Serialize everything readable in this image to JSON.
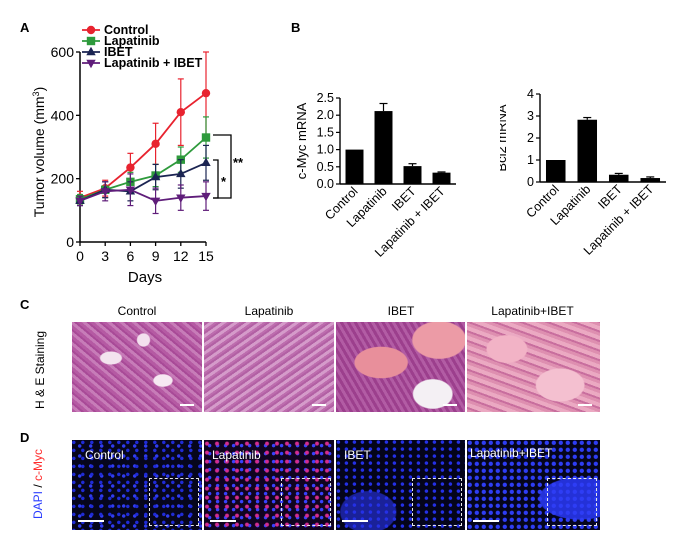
{
  "panels": {
    "A": "A",
    "B": "B",
    "C": "C",
    "D": "D"
  },
  "chart_data": [
    {
      "type": "line",
      "xlabel": "Days",
      "ylabel": "Tumor volume (mm",
      "ylabel_sup": "3",
      "ylabel_end": ")",
      "x": [
        0,
        3,
        6,
        9,
        12,
        15
      ],
      "xlim": [
        0,
        15
      ],
      "ylim": [
        0,
        600
      ],
      "yticks": [
        0,
        200,
        400,
        600
      ],
      "legend": "top-left",
      "series": [
        {
          "name": "Control",
          "color": "#e8232f",
          "marker": "circle",
          "values": [
            140,
            170,
            235,
            310,
            410,
            470
          ],
          "err": [
            20,
            25,
            45,
            65,
            105,
            130
          ]
        },
        {
          "name": "Lapatinib",
          "color": "#2e9a3c",
          "marker": "square",
          "values": [
            135,
            165,
            190,
            210,
            260,
            330
          ],
          "err": [
            15,
            25,
            30,
            35,
            40,
            65
          ]
        },
        {
          "name": "IBET",
          "color": "#1b2452",
          "marker": "triangle",
          "values": [
            130,
            165,
            160,
            205,
            215,
            250
          ],
          "err": [
            15,
            25,
            30,
            40,
            45,
            55
          ]
        },
        {
          "name": "Lapatinib + IBET",
          "color": "#5f1d7a",
          "marker": "triangle-down",
          "values": [
            130,
            160,
            165,
            130,
            140,
            145
          ],
          "err": [
            15,
            30,
            50,
            40,
            40,
            45
          ]
        }
      ],
      "significance": [
        "**",
        "*"
      ]
    },
    {
      "type": "bar",
      "ylabel": "c-Myc mRNA",
      "categories": [
        "Control",
        "Lapatinib",
        "IBET",
        "Lapatinib + IBET"
      ],
      "values": [
        1.0,
        2.12,
        0.52,
        0.33
      ],
      "err": [
        0.0,
        0.22,
        0.07,
        0.02
      ],
      "ylim": [
        0,
        2.5
      ],
      "yticks": [
        "0.0",
        "0.5",
        "1.0",
        "1.5",
        "2.0",
        "2.5"
      ],
      "bar_color": "#000000"
    },
    {
      "type": "bar",
      "ylabel": "Bcl2 mRNA",
      "categories": [
        "Control",
        "Lapatinib",
        "IBET",
        "Lapatinib + IBET"
      ],
      "values": [
        1.0,
        2.83,
        0.33,
        0.18
      ],
      "err": [
        0.0,
        0.1,
        0.06,
        0.05
      ],
      "ylim": [
        0,
        4
      ],
      "yticks": [
        "0",
        "1",
        "2",
        "3",
        "4"
      ],
      "bar_color": "#000000"
    }
  ],
  "panel_c": {
    "side_label": "H & E Staining",
    "titles": [
      "Control",
      "Lapatinib",
      "IBET",
      "Lapatinib+IBET"
    ]
  },
  "panel_d": {
    "side_label_dapi": "DAPI",
    "side_label_sep": "/",
    "side_label_myc": "c-Myc",
    "labels": [
      "Control",
      "Lapatinib",
      "IBET",
      "Lapatinib+IBET"
    ],
    "dapi_color": "#2a3cff",
    "myc_color": "#ff2b2b"
  }
}
